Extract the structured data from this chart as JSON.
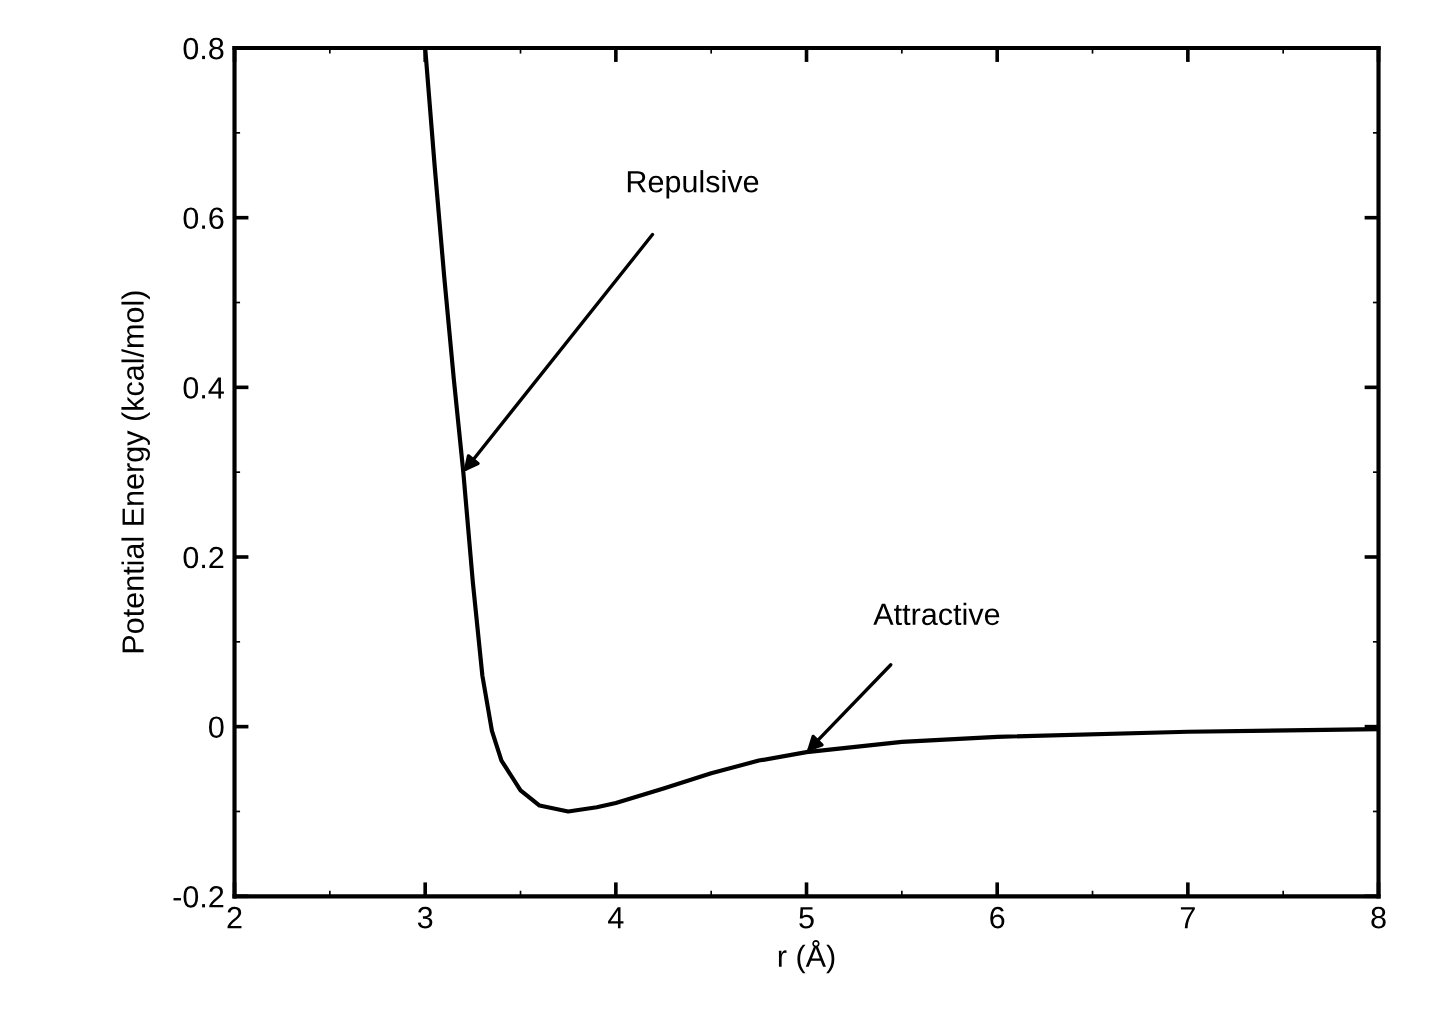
{
  "chart_data": {
    "type": "line",
    "xlabel": "r (Å)",
    "ylabel": "Potential Energy (kcal/mol)",
    "x": [
      3.0,
      3.05,
      3.1,
      3.15,
      3.2,
      3.25,
      3.3,
      3.35,
      3.4,
      3.5,
      3.6,
      3.75,
      3.9,
      4.0,
      4.25,
      4.5,
      4.75,
      5.0,
      5.5,
      6.0,
      7.0,
      8.0
    ],
    "series": [
      {
        "color": "#000000",
        "values": [
          0.8,
          0.66,
          0.53,
          0.41,
          0.3,
          0.17,
          0.06,
          -0.005,
          -0.04,
          -0.075,
          -0.093,
          -0.1,
          -0.095,
          -0.09,
          -0.073,
          -0.055,
          -0.04,
          -0.03,
          -0.018,
          -0.012,
          -0.006,
          -0.003
        ]
      }
    ],
    "xlim": [
      2,
      8
    ],
    "ylim": [
      -0.2,
      0.8
    ],
    "xticks": [
      2,
      3,
      4,
      5,
      6,
      7,
      8
    ],
    "yticks": [
      -0.2,
      0,
      0.2,
      0.4,
      0.6,
      0.8
    ],
    "annotations": [
      {
        "text": "Repulsive",
        "x": 3.2,
        "y": 0.3
      },
      {
        "text": "Attractive",
        "x": 5.0,
        "y": -0.03
      }
    ],
    "grid": false,
    "legend": false,
    "marker": "none",
    "line_style": "solid"
  }
}
